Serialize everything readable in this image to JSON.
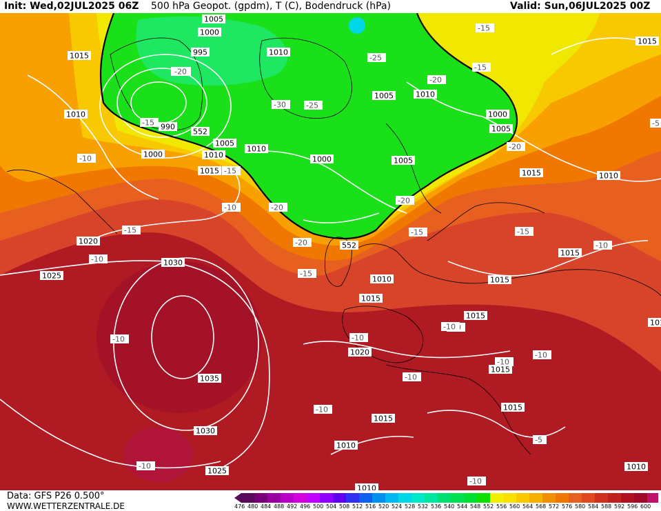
{
  "header": {
    "init": "Init: Wed,02JUL2025 06Z",
    "title": "500 hPa Geopot. (gpdm), T (C), Bodendruck (hPa)",
    "valid": "Valid: Sun,06JUL2025 00Z"
  },
  "footer": {
    "data_source": "Data: GFS P26 0.500°",
    "website": "WWW.WETTERZENTRALE.DE"
  },
  "colorbar": {
    "labels": [
      "476",
      "480",
      "484",
      "488",
      "492",
      "496",
      "500",
      "504",
      "508",
      "512",
      "516",
      "520",
      "524",
      "528",
      "532",
      "536",
      "540",
      "544",
      "548",
      "552",
      "556",
      "560",
      "564",
      "568",
      "572",
      "576",
      "580",
      "584",
      "588",
      "592",
      "596",
      "600"
    ],
    "colors": [
      "#5a0a5a",
      "#7a007a",
      "#9a00a0",
      "#b800c8",
      "#d400e0",
      "#c000ff",
      "#9000ff",
      "#6000f0",
      "#3030f0",
      "#1060f0",
      "#0090f0",
      "#00b8f0",
      "#00d8e8",
      "#00e8c8",
      "#00e8a0",
      "#00e070",
      "#00e050",
      "#00e030",
      "#10e000",
      "#f0f000",
      "#f8e000",
      "#f8c800",
      "#f8b000",
      "#f09000",
      "#f07800",
      "#e86020",
      "#e04820",
      "#d03020",
      "#c02020",
      "#b01020",
      "#a00a28",
      "#c0106a"
    ]
  },
  "pressure_labels": [
    "1005",
    "995",
    "1000",
    "1010",
    "1015",
    "1005",
    "1000",
    "1005",
    "1010",
    "1010",
    "1005",
    "1000",
    "1010",
    "1005",
    "1000",
    "1015",
    "1010",
    "1020",
    "1025",
    "1030",
    "1035",
    "1030",
    "1025",
    "1015",
    "1015",
    "1010",
    "1015",
    "1015",
    "1015",
    "1015",
    "1015",
    "1010",
    "1020",
    "1010",
    "1015",
    "1015",
    "1015",
    "1010",
    "990",
    "1010"
  ],
  "temperature_labels": [
    "-15",
    "-20",
    "-25",
    "-20",
    "-15",
    "-25",
    "-30",
    "-20",
    "-15",
    "-10",
    "-15",
    "-10",
    "-15",
    "-20",
    "-20",
    "-20",
    "-15",
    "-10",
    "-10",
    "-15",
    "-10",
    "-10",
    "-15",
    "-5",
    "-10",
    "-10",
    "-10",
    "-10",
    "-10",
    "-10",
    "-10",
    "-5",
    "-10",
    "-20"
  ],
  "contour_labels": [
    "552",
    "552"
  ]
}
